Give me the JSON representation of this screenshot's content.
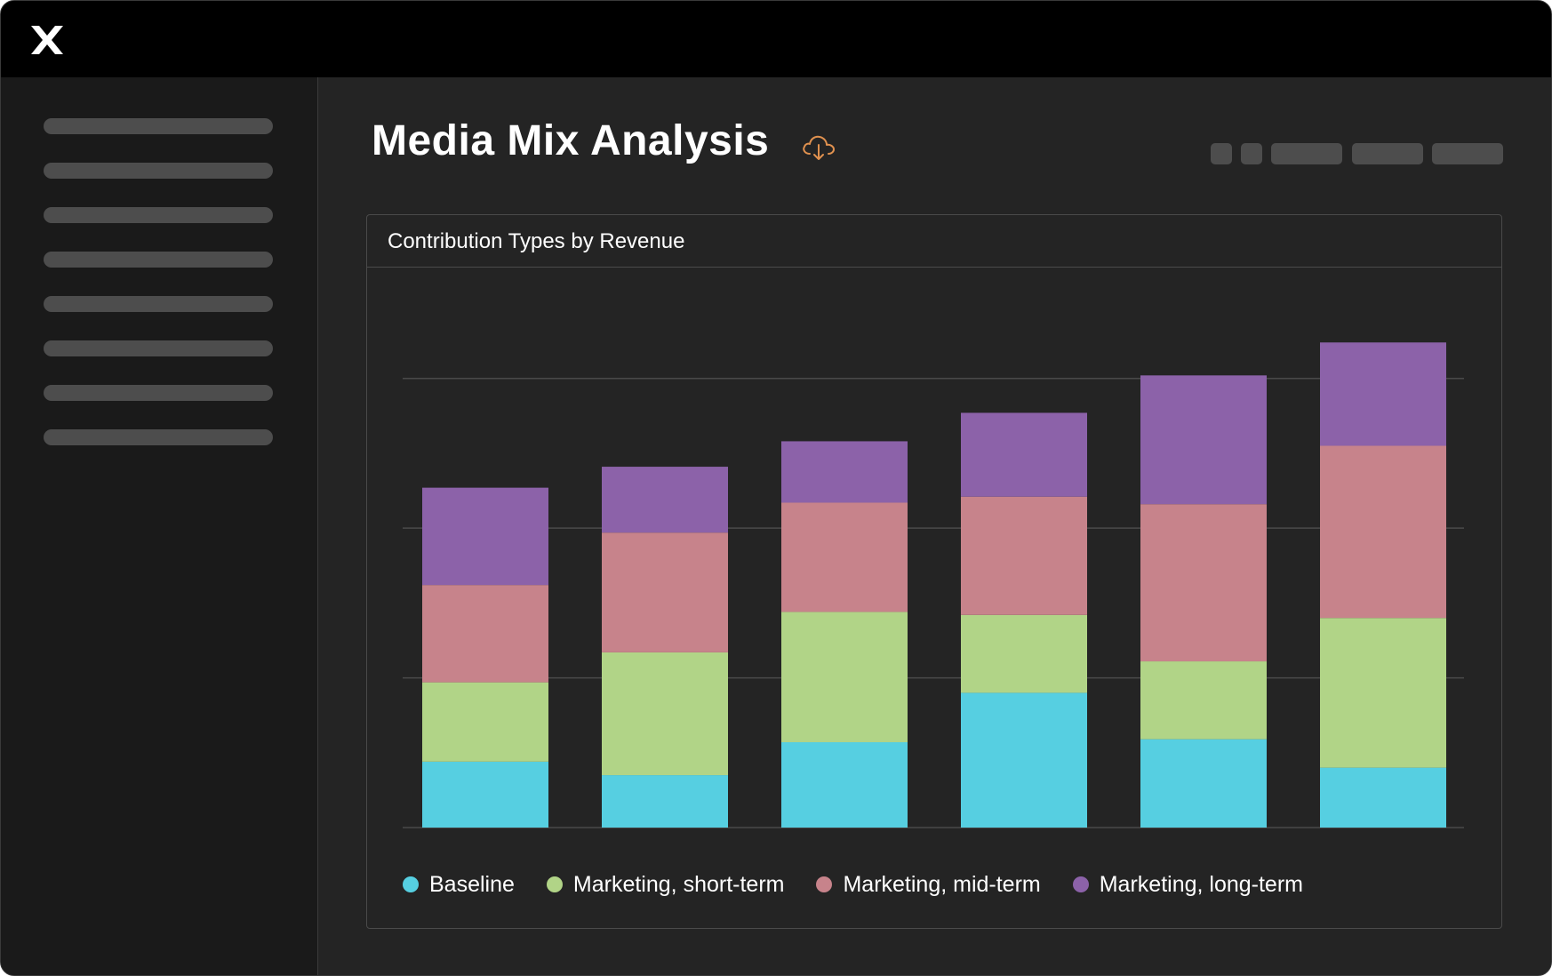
{
  "app": {
    "logo_icon": "x-logo-icon",
    "download_icon": "cloud-download-icon",
    "accent_color": "#e0914f"
  },
  "sidebar": {
    "items": [
      {
        "label": ""
      },
      {
        "label": ""
      },
      {
        "label": ""
      },
      {
        "label": ""
      },
      {
        "label": ""
      },
      {
        "label": ""
      },
      {
        "label": ""
      },
      {
        "label": ""
      }
    ]
  },
  "header": {
    "title": "Media Mix Analysis"
  },
  "card": {
    "title": "Contribution Types by Revenue"
  },
  "chart_data": {
    "type": "bar",
    "stacked": true,
    "grid": true,
    "legend_position": "bottom-left",
    "ylim": [
      0,
      3.2
    ],
    "categories": [
      "",
      "",
      "",
      "",
      "",
      ""
    ],
    "series": [
      {
        "name": "Baseline",
        "color": "#56cfe1",
        "values": [
          0.44,
          0.35,
          0.57,
          0.9,
          0.59,
          0.4
        ]
      },
      {
        "name": "Marketing, short-term",
        "color": "#b1d487",
        "values": [
          0.53,
          0.82,
          0.87,
          0.52,
          0.52,
          1.0
        ]
      },
      {
        "name": "Marketing, mid-term",
        "color": "#c7838b",
        "values": [
          0.65,
          0.8,
          0.73,
          0.79,
          1.05,
          1.15
        ]
      },
      {
        "name": "Marketing, long-term",
        "color": "#8c62a9",
        "values": [
          0.65,
          0.44,
          0.41,
          0.56,
          0.86,
          0.69
        ]
      }
    ]
  }
}
